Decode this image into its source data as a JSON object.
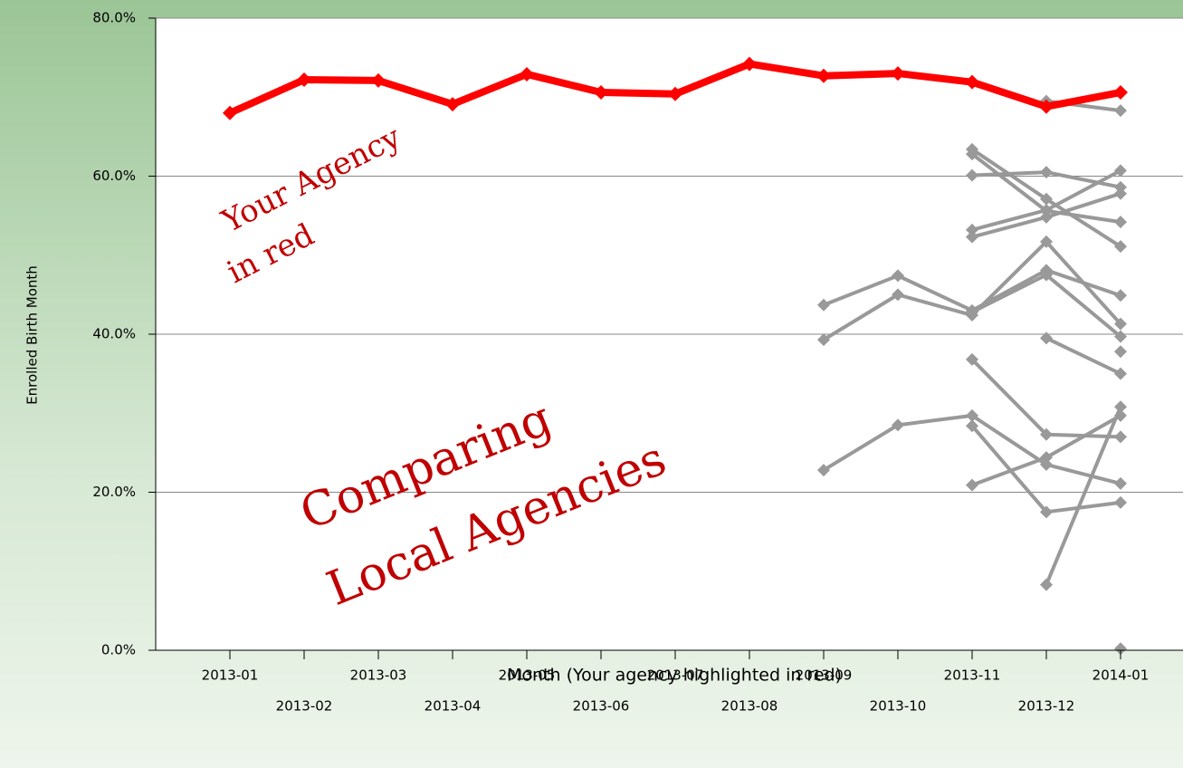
{
  "chart_data": {
    "type": "line",
    "xlabel": "Month (Your agency highlighted in red)",
    "ylabel": "Enrolled Birth Month",
    "annotations": [
      "Your Agency",
      "in red",
      "Comparing",
      "Local Agencies"
    ],
    "categories": [
      "2013-01",
      "2013-02",
      "2013-03",
      "2013-04",
      "2013-05",
      "2013-06",
      "2013-07",
      "2013-08",
      "2013-09",
      "2013-10",
      "2013-11",
      "2013-12",
      "2014-01"
    ],
    "ylim": [
      0,
      80
    ],
    "yticks": [
      {
        "value": 0,
        "label": "0.0%"
      },
      {
        "value": 20,
        "label": "20.0%"
      },
      {
        "value": 40,
        "label": "40.0%"
      },
      {
        "value": 60,
        "label": "60.0%"
      },
      {
        "value": 80,
        "label": "80.0%"
      }
    ],
    "grid": true,
    "series": [
      {
        "color": "#999999",
        "values": [
          null,
          null,
          null,
          null,
          null,
          null,
          null,
          null,
          43.7,
          47.4,
          43.0,
          48.1,
          44.9
        ]
      },
      {
        "color": "#999999",
        "values": [
          null,
          null,
          null,
          null,
          null,
          null,
          null,
          null,
          39.3,
          45.0,
          42.4,
          51.7,
          41.3
        ]
      },
      {
        "color": "#999999",
        "values": [
          null,
          null,
          null,
          null,
          null,
          null,
          null,
          null,
          22.8,
          28.5,
          29.7,
          23.5,
          21.1
        ]
      },
      {
        "color": "#999999",
        "values": [
          null,
          null,
          null,
          null,
          null,
          null,
          null,
          null,
          null,
          null,
          63.4,
          57.1,
          51.1
        ]
      },
      {
        "color": "#999999",
        "values": [
          null,
          null,
          null,
          null,
          null,
          null,
          null,
          null,
          null,
          null,
          62.8,
          55.6,
          54.2
        ]
      },
      {
        "color": "#999999",
        "values": [
          null,
          null,
          null,
          null,
          null,
          null,
          null,
          null,
          null,
          null,
          60.1,
          60.5,
          58.6
        ]
      },
      {
        "color": "#999999",
        "values": [
          null,
          null,
          null,
          null,
          null,
          null,
          null,
          null,
          null,
          null,
          53.2,
          55.7,
          60.7
        ]
      },
      {
        "color": "#999999",
        "values": [
          null,
          null,
          null,
          null,
          null,
          null,
          null,
          null,
          null,
          null,
          52.3,
          54.8,
          57.8
        ]
      },
      {
        "color": "#999999",
        "values": [
          null,
          null,
          null,
          null,
          null,
          null,
          null,
          null,
          null,
          null,
          42.8,
          47.5,
          39.7
        ]
      },
      {
        "color": "#999999",
        "values": [
          null,
          null,
          null,
          null,
          null,
          null,
          null,
          null,
          null,
          null,
          36.8,
          27.3,
          27.0
        ]
      },
      {
        "color": "#999999",
        "values": [
          null,
          null,
          null,
          null,
          null,
          null,
          null,
          null,
          null,
          null,
          28.4,
          17.5,
          18.7
        ]
      },
      {
        "color": "#999999",
        "values": [
          null,
          null,
          null,
          null,
          null,
          null,
          null,
          null,
          null,
          null,
          20.9,
          24.4,
          29.7
        ]
      },
      {
        "color": "#999999",
        "values": [
          null,
          null,
          null,
          null,
          null,
          null,
          null,
          null,
          null,
          null,
          null,
          39.5,
          35.0
        ]
      },
      {
        "color": "#999999",
        "values": [
          null,
          null,
          null,
          null,
          null,
          null,
          null,
          null,
          null,
          null,
          null,
          8.3,
          30.8
        ]
      },
      {
        "color": "#999999",
        "values": [
          null,
          null,
          null,
          null,
          null,
          null,
          null,
          null,
          null,
          null,
          null,
          69.5,
          68.3
        ]
      },
      {
        "color": "#999999",
        "values": [
          null,
          null,
          null,
          null,
          null,
          null,
          null,
          null,
          null,
          null,
          null,
          null,
          37.8
        ]
      },
      {
        "color": "#999999",
        "values": [
          null,
          null,
          null,
          null,
          null,
          null,
          null,
          null,
          null,
          null,
          null,
          null,
          0.2
        ]
      },
      {
        "color": "#ff0000",
        "values": [
          68.0,
          72.2,
          72.1,
          69.1,
          72.9,
          70.6,
          70.4,
          74.2,
          72.7,
          73.0,
          71.9,
          68.8,
          70.6
        ]
      }
    ]
  }
}
